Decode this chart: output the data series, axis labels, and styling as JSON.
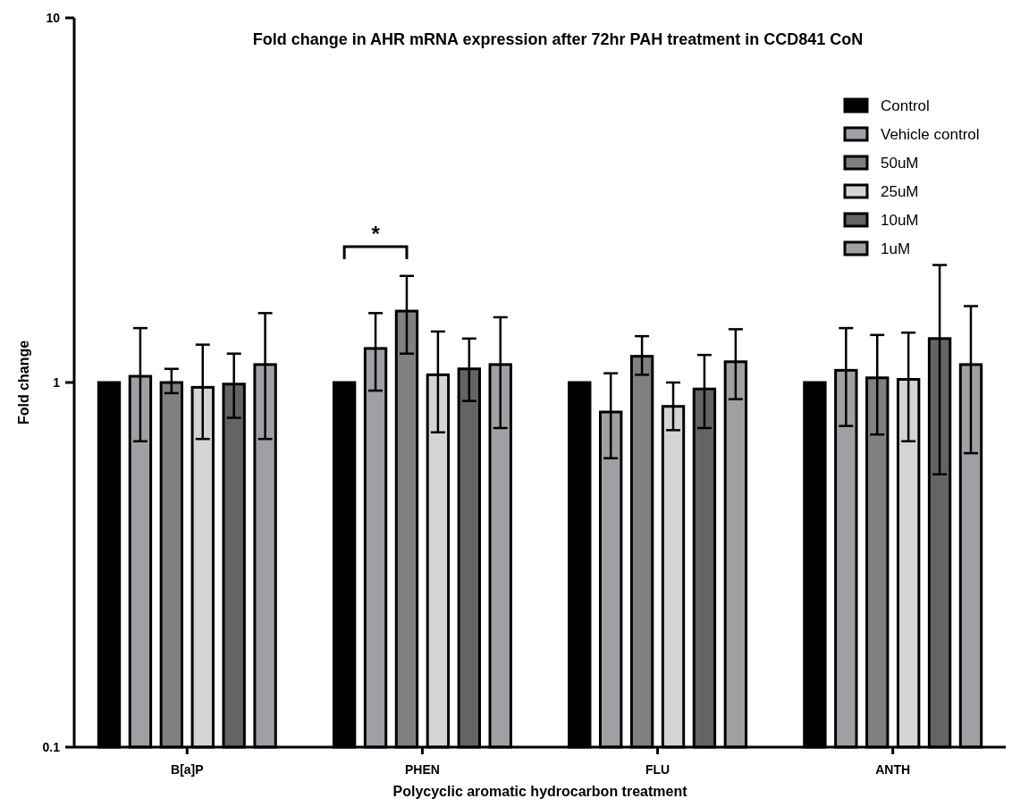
{
  "chart_data": {
    "type": "bar",
    "title": "Fold change in AHR mRNA expression after 72hr PAH treatment in CCD841 CoN",
    "xlabel": "Polycyclic aromatic hydrocarbon treatment",
    "ylabel": "Fold change",
    "categories": [
      "B[a]P",
      "PHEN",
      "FLU",
      "ANTH"
    ],
    "log": true,
    "ylim": [
      0.1,
      10
    ],
    "yticks": [
      0.1,
      1,
      10
    ],
    "grid": false,
    "legend": "top right",
    "series": [
      {
        "name": "Control",
        "color": "#000000",
        "values": [
          1,
          1,
          1,
          1
        ]
      },
      {
        "name": "Vehicle control",
        "color": "#a0a0a4",
        "values": [
          1.04,
          1.24,
          0.83,
          1.08
        ],
        "errors": [
          [
            0.69,
            1.41
          ],
          [
            0.95,
            1.55
          ],
          [
            0.62,
            1.06
          ],
          [
            0.76,
            1.41
          ]
        ]
      },
      {
        "name": "50uM",
        "color": "#808080",
        "values": [
          1.0,
          1.57,
          1.18,
          1.03
        ],
        "errors": [
          [
            0.935,
            1.09
          ],
          [
            1.2,
            1.96
          ],
          [
            1.05,
            1.34
          ],
          [
            0.72,
            1.35
          ]
        ]
      },
      {
        "name": "25uM",
        "color": "#d4d4d4",
        "values": [
          0.97,
          1.05,
          0.86,
          1.02
        ],
        "errors": [
          [
            0.7,
            1.27
          ],
          [
            0.73,
            1.38
          ],
          [
            0.74,
            1.0
          ],
          [
            0.69,
            1.37
          ]
        ]
      },
      {
        "name": "10uM",
        "color": "#646464",
        "values": [
          0.99,
          1.09,
          0.96,
          1.32
        ],
        "errors": [
          [
            0.8,
            1.2
          ],
          [
            0.89,
            1.32
          ],
          [
            0.75,
            1.19
          ],
          [
            0.56,
            2.1
          ]
        ]
      },
      {
        "name": "1uM",
        "color": "#a0a0a4",
        "values": [
          1.12,
          1.12,
          1.14,
          1.12
        ],
        "errors": [
          [
            0.7,
            1.55
          ],
          [
            0.75,
            1.51
          ],
          [
            0.9,
            1.4
          ],
          [
            0.64,
            1.62
          ]
        ]
      }
    ],
    "annotations": [
      "*"
    ]
  }
}
